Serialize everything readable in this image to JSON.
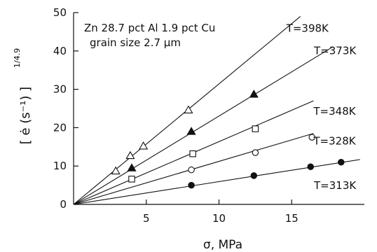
{
  "chart_data": {
    "type": "scatter",
    "title": "",
    "annotations": [
      "Zn 28.7 pct Al 1.9 pct Cu",
      "grain size 2.7 μm"
    ],
    "xlabel": "σ, MPa",
    "ylabel": "[ ė (s⁻¹) ]",
    "ylabel_exponent": "1/4.9",
    "xlim": [
      0,
      20
    ],
    "ylim": [
      0,
      50
    ],
    "x_ticks": [
      5,
      10,
      15
    ],
    "y_ticks": [
      0,
      10,
      20,
      30,
      40,
      50
    ],
    "grid": false,
    "series": [
      {
        "name": "T=398K",
        "marker": "triangle-open",
        "x": [
          2.9,
          3.9,
          4.8,
          7.9
        ],
        "y": [
          8.7,
          12.7,
          15.2,
          24.6
        ],
        "line_end": [
          15.6,
          49.0
        ]
      },
      {
        "name": "T=373K",
        "marker": "triangle-filled",
        "x": [
          4.0,
          8.1,
          12.4
        ],
        "y": [
          9.5,
          19.0,
          28.7
        ],
        "line_end": [
          17.8,
          41.0
        ]
      },
      {
        "name": "T=348K",
        "marker": "square-open",
        "x": [
          4.0,
          8.2,
          12.5
        ],
        "y": [
          6.6,
          13.2,
          19.7
        ],
        "line_end": [
          16.5,
          27.0
        ]
      },
      {
        "name": "T=328K",
        "marker": "circle-open",
        "x": [
          8.1,
          12.5,
          16.4
        ],
        "y": [
          9.0,
          13.5,
          17.5
        ],
        "line_end": [
          16.5,
          18.5
        ]
      },
      {
        "name": "T=313K",
        "marker": "circle-filled",
        "x": [
          8.1,
          12.4,
          16.3,
          18.4
        ],
        "y": [
          5.0,
          7.5,
          9.8,
          11.0
        ],
        "line_end": [
          19.7,
          11.7
        ]
      }
    ]
  }
}
